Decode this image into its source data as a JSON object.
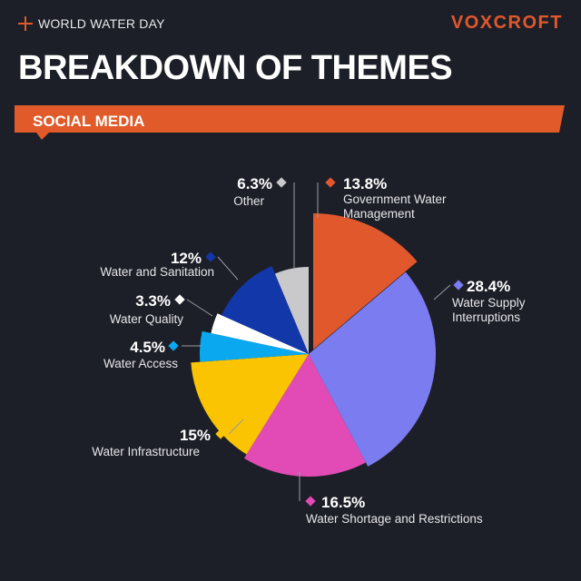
{
  "header": {
    "kicker": "WORLD WATER DAY",
    "logo": "VOXCROFT",
    "title": "BREAKDOWN OF THEMES"
  },
  "banner": {
    "label": "SOCIAL MEDIA",
    "color": "#e05a2a"
  },
  "chart_data": {
    "type": "pie",
    "series": [
      {
        "label": "Government Water Management",
        "value": 13.8,
        "value_label": "13.8%",
        "lines": [
          "Government Water",
          "Management"
        ],
        "color": "#e0582c"
      },
      {
        "label": "Water Supply Interruptions",
        "value": 28.4,
        "value_label": "28.4%",
        "lines": [
          "Water Supply",
          "Interruptions"
        ],
        "color": "#7b7cf0"
      },
      {
        "label": "Water Shortage and Restrictions",
        "value": 16.5,
        "value_label": "16.5%",
        "lines": [
          "Water Shortage and Restrictions"
        ],
        "color": "#e24bb5"
      },
      {
        "label": "Water Infrastructure",
        "value": 15,
        "value_label": "15%",
        "lines": [
          "Water Infrastructure"
        ],
        "color": "#fbc402"
      },
      {
        "label": "Water Access",
        "value": 4.5,
        "value_label": "4.5%",
        "lines": [
          "Water Access"
        ],
        "color": "#0aa9ef"
      },
      {
        "label": "Water Quality",
        "value": 3.3,
        "value_label": "3.3%",
        "lines": [
          "Water Quality"
        ],
        "color": "#ffffff"
      },
      {
        "label": "Water and Sanitation",
        "value": 12,
        "value_label": "12%",
        "lines": [
          "Water and Sanitation"
        ],
        "color": "#1237a9"
      },
      {
        "label": "Other",
        "value": 6.3,
        "value_label": "6.3%",
        "lines": [
          "Other"
        ],
        "color": "#c9c9cc"
      }
    ],
    "exploded": "Government Water Management"
  }
}
